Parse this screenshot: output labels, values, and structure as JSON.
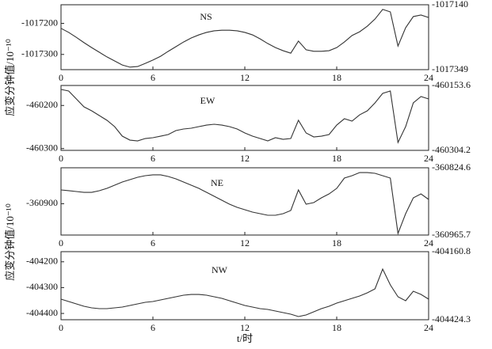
{
  "chart_data": [
    {
      "type": "line",
      "label": "NS",
      "ylabel": "应变分钟值/10⁻¹⁰",
      "color": "#333333",
      "x": [
        0,
        0.5,
        1,
        1.5,
        2,
        2.5,
        3,
        3.5,
        4,
        4.5,
        5,
        5.5,
        6,
        6.5,
        7,
        7.5,
        8,
        8.5,
        9,
        9.5,
        10,
        10.5,
        11,
        11.5,
        12,
        12.5,
        13,
        13.5,
        14,
        14.5,
        15,
        15.5,
        16,
        16.5,
        17,
        17.5,
        18,
        18.5,
        19,
        19.5,
        20,
        20.5,
        21,
        21.5,
        22,
        22.5,
        23,
        23.5,
        24
      ],
      "values": [
        -1017216,
        -1017229,
        -1017245,
        -1017262,
        -1017278,
        -1017293,
        -1017308,
        -1017321,
        -1017334,
        -1017341,
        -1017339,
        -1017329,
        -1017318,
        -1017306,
        -1017290,
        -1017275,
        -1017260,
        -1017247,
        -1017237,
        -1017229,
        -1017224,
        -1017222,
        -1017222,
        -1017224,
        -1017229,
        -1017237,
        -1017250,
        -1017265,
        -1017278,
        -1017288,
        -1017296,
        -1017257,
        -1017285,
        -1017290,
        -1017290,
        -1017288,
        -1017278,
        -1017260,
        -1017239,
        -1017227,
        -1017209,
        -1017186,
        -1017155,
        -1017163,
        -1017273,
        -1017214,
        -1017178,
        -1017173,
        -1017181
      ],
      "xlim": [
        0,
        24
      ],
      "xticks": [
        0,
        6,
        12,
        18,
        24
      ],
      "ylim": [
        -1017349,
        -1017140
      ],
      "yticks": [
        -1017200,
        -1017300
      ],
      "y2lim": [
        -1017349,
        -1017140
      ],
      "y2ticks": [
        -1017140,
        -1017349
      ]
    },
    {
      "type": "line",
      "label": "EW",
      "color": "#333333",
      "x": [
        0,
        0.5,
        1,
        1.5,
        2,
        2.5,
        3,
        3.5,
        4,
        4.5,
        5,
        5.5,
        6,
        6.5,
        7,
        7.5,
        8,
        8.5,
        9,
        9.5,
        10,
        10.5,
        11,
        11.5,
        12,
        12.5,
        13,
        13.5,
        14,
        14.5,
        15,
        15.5,
        16,
        16.5,
        17,
        17.5,
        18,
        18.5,
        19,
        19.5,
        20,
        20.5,
        21,
        21.5,
        22,
        22.5,
        23,
        23.5,
        24
      ],
      "values": [
        -460162.8,
        -460166.5,
        -460184.8,
        -460203.2,
        -460212.4,
        -460223.4,
        -460234.4,
        -460249.1,
        -460271.2,
        -460280.4,
        -460282.2,
        -460276.7,
        -460274.8,
        -460271.2,
        -460267.5,
        -460258.3,
        -460254.6,
        -460252.8,
        -460249.1,
        -460245.5,
        -460243.6,
        -460245.5,
        -460249.1,
        -460254.6,
        -460263.8,
        -460271.2,
        -460276.7,
        -460282.2,
        -460274.8,
        -460278.5,
        -460276.7,
        -460234.4,
        -460263.8,
        -460273.0,
        -460271.2,
        -460267.5,
        -460245.5,
        -460230.8,
        -460236.3,
        -460221.6,
        -460212.4,
        -460194.0,
        -460172.0,
        -460166.5,
        -460285.9,
        -460249.1,
        -460194.0,
        -460179.3,
        -460184.8
      ],
      "xlim": [
        0,
        24
      ],
      "xticks": [
        0,
        6,
        12,
        18,
        24
      ],
      "ylim": [
        -460304.2,
        -460153.6
      ],
      "yticks": [
        -460200,
        -460300
      ],
      "y2lim": [
        -460304.2,
        -460153.6
      ],
      "y2ticks": [
        -460153.6,
        -460304.2
      ]
    },
    {
      "type": "line",
      "label": "NE",
      "ylabel": "应变分钟值/10⁻¹⁰",
      "color": "#333333",
      "x": [
        0,
        0.5,
        1,
        1.5,
        2,
        2.5,
        3,
        3.5,
        4,
        4.5,
        5,
        5.5,
        6,
        6.5,
        7,
        7.5,
        8,
        8.5,
        9,
        9.5,
        10,
        10.5,
        11,
        11.5,
        12,
        12.5,
        13,
        13.5,
        14,
        14.5,
        15,
        15.5,
        16,
        16.5,
        17,
        17.5,
        18,
        18.5,
        19,
        19.5,
        20,
        20.5,
        21,
        21.5,
        22,
        22.5,
        23,
        23.5,
        24
      ],
      "values": [
        -360871.1,
        -360872.7,
        -360874.4,
        -360876.1,
        -360876.1,
        -360872.7,
        -360867.8,
        -360861.1,
        -360854.5,
        -360849.5,
        -360844.5,
        -360841.2,
        -360839.5,
        -360839.5,
        -360842.9,
        -360847.8,
        -360854.5,
        -360861.1,
        -360867.8,
        -360876.1,
        -360884.4,
        -360892.7,
        -360901.0,
        -360907.6,
        -360912.6,
        -360917.6,
        -360920.9,
        -360924.2,
        -360924.2,
        -360920.9,
        -360914.2,
        -360871.1,
        -360901.0,
        -360897.6,
        -360887.7,
        -360879.4,
        -360867.8,
        -360846.2,
        -360841.2,
        -360834.6,
        -360834.6,
        -360836.2,
        -360841.2,
        -360846.2,
        -360962.4,
        -360920.9,
        -360887.7,
        -360879.4,
        -360891.0
      ],
      "xlim": [
        0,
        24
      ],
      "xticks": [
        0,
        6,
        12,
        18,
        24
      ],
      "ylim": [
        -360965.7,
        -360824.6
      ],
      "yticks": [
        -360900
      ],
      "y2lim": [
        -360965.7,
        -360824.6
      ],
      "y2ticks": [
        -360824.6,
        -360965.7
      ]
    },
    {
      "type": "line",
      "label": "NW",
      "xlabel": "t/时",
      "color": "#333333",
      "x": [
        0,
        0.5,
        1,
        1.5,
        2,
        2.5,
        3,
        3.5,
        4,
        4.5,
        5,
        5.5,
        6,
        6.5,
        7,
        7.5,
        8,
        8.5,
        9,
        9.5,
        10,
        10.5,
        11,
        11.5,
        12,
        12.5,
        13,
        13.5,
        14,
        14.5,
        15,
        15.5,
        16,
        16.5,
        17,
        17.5,
        18,
        18.5,
        19,
        19.5,
        20,
        20.5,
        21,
        21.5,
        22,
        22.5,
        23,
        23.5,
        24
      ],
      "values": [
        -404344.6,
        -404353.8,
        -404363.0,
        -404372.2,
        -404378.3,
        -404381.4,
        -404381.4,
        -404378.3,
        -404375.3,
        -404369.2,
        -404363.0,
        -404356.9,
        -404353.8,
        -404347.7,
        -404341.6,
        -404335.4,
        -404329.3,
        -404326.3,
        -404326.3,
        -404329.3,
        -404335.4,
        -404341.6,
        -404350.8,
        -404360.0,
        -404369.2,
        -404375.3,
        -404381.4,
        -404384.5,
        -404390.6,
        -404396.7,
        -404402.9,
        -404412.0,
        -404405.9,
        -404393.7,
        -404381.4,
        -404372.2,
        -404360.0,
        -404350.8,
        -404341.6,
        -404332.4,
        -404320.1,
        -404304.8,
        -404228.2,
        -404289.5,
        -404335.4,
        -404350.8,
        -404314.0,
        -404326.3,
        -404344.6
      ],
      "xlim": [
        0,
        24
      ],
      "xticks": [
        0,
        6,
        12,
        18,
        24
      ],
      "ylim": [
        -404424.3,
        -404160.8
      ],
      "yticks": [
        -404200,
        -404300,
        -404400
      ],
      "y2lim": [
        -404424.3,
        -404160.8
      ],
      "y2ticks": [
        -404160.8,
        -404424.3
      ]
    }
  ]
}
